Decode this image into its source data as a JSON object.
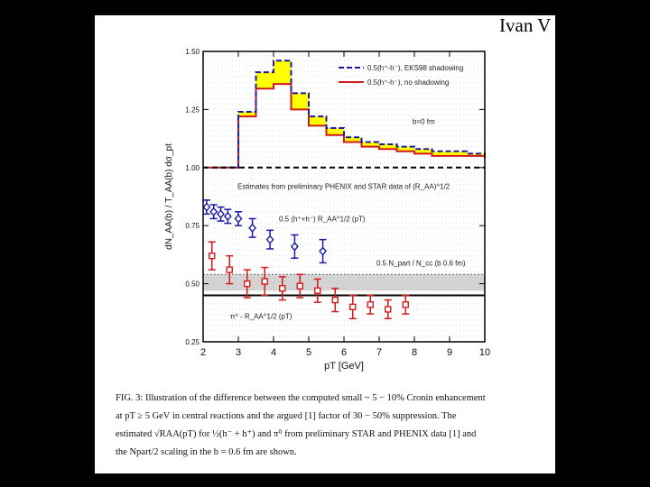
{
  "slide": {
    "header": "Ivan V"
  },
  "figure": {
    "caption_lines": [
      "FIG. 3: Illustration of the difference between the computed small ~ 5 − 10% Cronin enhancement",
      "at pT ≥ 5 GeV in central reactions and the argued [1] factor of 30 − 50% suppression. The",
      "estimated √RAA(pT) for ½(h⁻ + h⁺) and π⁰ from preliminary STAR and PHENIX data [1] and",
      "the Npart/2 scaling in the b = 0.6 fm are shown."
    ]
  },
  "chart_data": {
    "type": "line",
    "title": "",
    "xlabel": "pT [GeV]",
    "ylabel": "dN_AA(b) / T_AA(b) dσ_pt",
    "xlim": [
      2,
      10
    ],
    "ylim": [
      0.25,
      1.5
    ],
    "xticks": [
      2,
      3,
      4,
      5,
      6,
      7,
      8,
      9,
      10
    ],
    "yticks": [
      0.25,
      0.5,
      0.75,
      1.0,
      1.25,
      1.5
    ],
    "ytick_labels": [
      "0.25",
      "0.50",
      "0.75",
      "1.00",
      "1.25",
      "1.50"
    ],
    "band": {
      "x": [
        2.5,
        3.0,
        3.5,
        4.0,
        4.5,
        5.0,
        5.5,
        6.0,
        6.5,
        7.0,
        7.5,
        8.0,
        8.5,
        9.0,
        9.5,
        10.0
      ],
      "lower": [
        1.0,
        1.22,
        1.34,
        1.36,
        1.25,
        1.18,
        1.14,
        1.11,
        1.09,
        1.08,
        1.07,
        1.06,
        1.05,
        1.05,
        1.05,
        1.04
      ],
      "upper": [
        1.0,
        1.24,
        1.41,
        1.46,
        1.32,
        1.22,
        1.17,
        1.13,
        1.11,
        1.1,
        1.09,
        1.08,
        1.07,
        1.07,
        1.06,
        1.05
      ]
    },
    "series": [
      {
        "name": "0.5(h⁺-h⁻), EKS98 shadowing",
        "style": "dashed",
        "color": "#1a1aa6"
      },
      {
        "name": "0.5(h⁺-h⁻), no shadowing",
        "style": "solid",
        "color": "#d21a1a"
      },
      {
        "name": "0.5 (h⁺+h⁻)  R_AA^1/2 (pT)",
        "style": "points-diamond",
        "color": "#1a1aa6",
        "x": [
          2.1,
          2.3,
          2.5,
          2.7,
          3.0,
          3.4,
          3.9,
          4.6,
          5.4
        ],
        "y": [
          0.83,
          0.81,
          0.8,
          0.79,
          0.78,
          0.74,
          0.69,
          0.66,
          0.64
        ],
        "err": [
          0.03,
          0.03,
          0.03,
          0.03,
          0.03,
          0.04,
          0.04,
          0.05,
          0.05
        ]
      },
      {
        "name": "π⁰ - R_AA^1/2 (pT)",
        "style": "points-square",
        "color": "#d21a1a",
        "x": [
          2.25,
          2.75,
          3.25,
          3.75,
          4.25,
          4.75,
          5.25,
          5.75,
          6.25,
          6.75,
          7.25,
          7.75
        ],
        "y": [
          0.62,
          0.56,
          0.5,
          0.51,
          0.48,
          0.49,
          0.47,
          0.43,
          0.4,
          0.41,
          0.39,
          0.41
        ],
        "err": [
          0.06,
          0.06,
          0.06,
          0.06,
          0.05,
          0.05,
          0.05,
          0.05,
          0.05,
          0.04,
          0.04,
          0.04
        ]
      }
    ],
    "reference_lines": [
      {
        "y": 1.0,
        "style": "dashed",
        "label": "Estimates from preliminary PHENIX and STAR data of (R_AA)^1/2"
      },
      {
        "y": 0.45,
        "style": "solid",
        "label": ""
      }
    ],
    "npart_band": {
      "y_low": 0.47,
      "y_high": 0.54,
      "label": "0.5 N_part / N_cc (b 0.6 fm)"
    },
    "annotations": {
      "b_label": "b=0 fm"
    }
  }
}
